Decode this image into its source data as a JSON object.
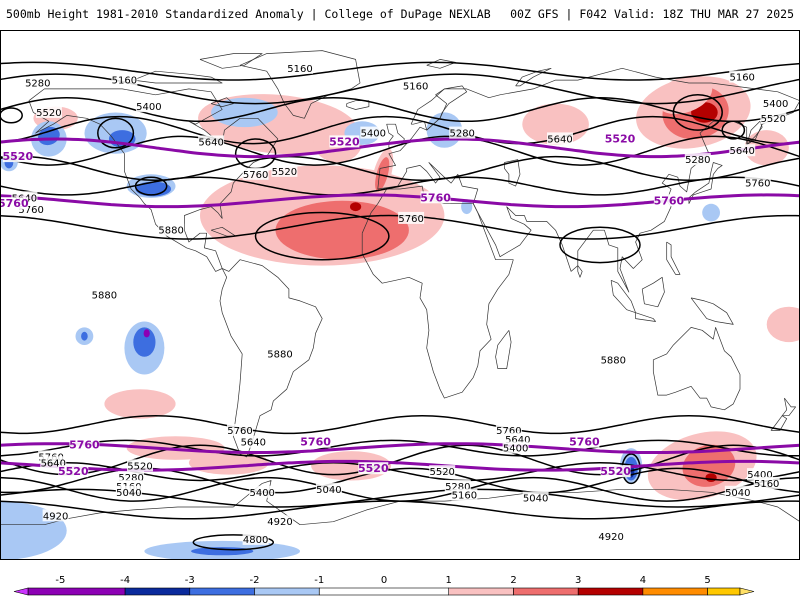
{
  "header": {
    "title": "500mb Height 1981-2010 Standardized Anomaly | College of DuPage NEXLAB",
    "run_info": "00Z GFS | F042 Valid: 18Z THU MAR 27 2025"
  },
  "colors": {
    "contour": "#000000",
    "highlight_contour": "#8a0aa6",
    "coast": "#333333",
    "frame": "#000000"
  },
  "anomaly_scale": [
    {
      "min": -5.5,
      "max": -4,
      "color": "#8c00b4"
    },
    {
      "min": -4,
      "max": -3,
      "color": "#0a2a9c"
    },
    {
      "min": -3,
      "max": -2,
      "color": "#3d6ee0"
    },
    {
      "min": -2,
      "max": -1,
      "color": "#a9c8f4"
    },
    {
      "min": -1,
      "max": 1,
      "color": "#ffffff"
    },
    {
      "min": 1,
      "max": 2,
      "color": "#f9c1c1"
    },
    {
      "min": 2,
      "max": 3,
      "color": "#ee6e6e"
    },
    {
      "min": 3,
      "max": 4,
      "color": "#b40000"
    },
    {
      "min": 4,
      "max": 5,
      "color": "#ff8c00"
    },
    {
      "min": 5,
      "max": 5.5,
      "color": "#ffc800"
    }
  ],
  "colorbar": {
    "ticks": [
      "-5",
      "-4",
      "-3",
      "-2",
      "-1",
      "0",
      "1",
      "2",
      "3",
      "4",
      "5"
    ]
  },
  "highlight_labels": [
    "5520",
    "5760"
  ],
  "contour_labels": [
    {
      "text": "5160",
      "lon": -45,
      "lat": 77
    },
    {
      "text": "5160",
      "lon": 154,
      "lat": 74
    },
    {
      "text": "5280",
      "lon": -163,
      "lat": 72
    },
    {
      "text": "5160",
      "lon": -124,
      "lat": 73
    },
    {
      "text": "5160",
      "lon": 7,
      "lat": 71
    },
    {
      "text": "5400",
      "lon": 169,
      "lat": 65
    },
    {
      "text": "5400",
      "lon": -113,
      "lat": 64
    },
    {
      "text": "5520",
      "lon": -158,
      "lat": 62
    },
    {
      "text": "5520",
      "lon": 168,
      "lat": 60
    },
    {
      "text": "5400",
      "lon": -12,
      "lat": 55
    },
    {
      "text": "5280",
      "lon": 28,
      "lat": 55
    },
    {
      "text": "5640",
      "lon": 72,
      "lat": 53
    },
    {
      "text": "5640",
      "lon": -85,
      "lat": 52
    },
    {
      "text": "5640",
      "lon": 154,
      "lat": 49
    },
    {
      "text": "5280",
      "lon": 134,
      "lat": 46
    },
    {
      "text": "5760",
      "lon": -65,
      "lat": 41
    },
    {
      "text": "5520",
      "lon": -52,
      "lat": 42
    },
    {
      "text": "5640",
      "lon": -169,
      "lat": 33
    },
    {
      "text": "5760",
      "lon": 161,
      "lat": 38
    },
    {
      "text": "5760",
      "lon": -166,
      "lat": 29
    },
    {
      "text": "5760",
      "lon": 5,
      "lat": 26
    },
    {
      "text": "5880",
      "lon": -103,
      "lat": 22
    },
    {
      "text": "5880",
      "lon": -133,
      "lat": 0
    },
    {
      "text": "5880",
      "lon": -54,
      "lat": -20
    },
    {
      "text": "5880",
      "lon": 96,
      "lat": -22
    },
    {
      "text": "5760",
      "lon": -72,
      "lat": -46
    },
    {
      "text": "5640",
      "lon": -66,
      "lat": -50
    },
    {
      "text": "5760",
      "lon": 49,
      "lat": -46
    },
    {
      "text": "5640",
      "lon": 53,
      "lat": -49
    },
    {
      "text": "5400",
      "lon": 52,
      "lat": -52
    },
    {
      "text": "5760",
      "lon": -157,
      "lat": -55
    },
    {
      "text": "5640",
      "lon": -156,
      "lat": -57
    },
    {
      "text": "5520",
      "lon": -117,
      "lat": -58
    },
    {
      "text": "5400",
      "lon": 162,
      "lat": -61
    },
    {
      "text": "5280",
      "lon": -121,
      "lat": -62
    },
    {
      "text": "5160",
      "lon": -122,
      "lat": -65
    },
    {
      "text": "5160",
      "lon": 165,
      "lat": -64
    },
    {
      "text": "5040",
      "lon": -122,
      "lat": -67
    },
    {
      "text": "5040",
      "lon": 152,
      "lat": -67
    },
    {
      "text": "5400",
      "lon": -62,
      "lat": -67
    },
    {
      "text": "5040",
      "lon": -32,
      "lat": -66
    },
    {
      "text": "5520",
      "lon": 19,
      "lat": -60
    },
    {
      "text": "5280",
      "lon": 26,
      "lat": -65
    },
    {
      "text": "5160",
      "lon": 29,
      "lat": -68
    },
    {
      "text": "5040",
      "lon": 61,
      "lat": -69
    },
    {
      "text": "4920",
      "lon": -155,
      "lat": -75
    },
    {
      "text": "4920",
      "lon": -54,
      "lat": -77
    },
    {
      "text": "4800",
      "lon": -65,
      "lat": -83
    },
    {
      "text": "4920",
      "lon": 95,
      "lat": -82
    }
  ],
  "purple_labels": [
    {
      "text": "5520",
      "lon": -172,
      "lat": 47
    },
    {
      "text": "5520",
      "lon": -25,
      "lat": 52
    },
    {
      "text": "5520",
      "lon": 99,
      "lat": 53
    },
    {
      "text": "5760",
      "lon": -174,
      "lat": 31
    },
    {
      "text": "5760",
      "lon": 16,
      "lat": 33
    },
    {
      "text": "5760",
      "lon": 121,
      "lat": 32
    },
    {
      "text": "5760",
      "lon": -142,
      "lat": -51
    },
    {
      "text": "5760",
      "lon": -38,
      "lat": -50
    },
    {
      "text": "5760",
      "lon": 83,
      "lat": -50
    },
    {
      "text": "5520",
      "lon": -147,
      "lat": -60
    },
    {
      "text": "5520",
      "lon": -12,
      "lat": -59
    },
    {
      "text": "5520",
      "lon": 97,
      "lat": -60
    }
  ]
}
